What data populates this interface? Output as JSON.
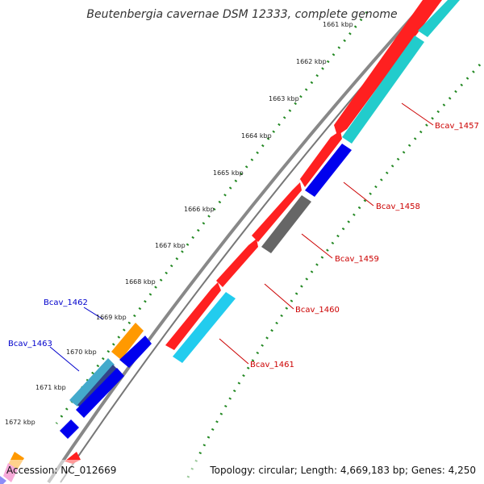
{
  "header": {
    "title": "Beutenbergia cavernae DSM 12333, complete genome"
  },
  "footer": {
    "accession": "Accession: NC_012669",
    "summary": "Topology: circular; Length: 4,669,183 bp; Genes: 4,250"
  },
  "ruler": {
    "ticks": [
      "1661 kbp",
      "1662 kbp",
      "1663 kbp",
      "1664 kbp",
      "1665 kbp",
      "1666 kbp",
      "1667 kbp",
      "1668 kbp",
      "1669 kbp",
      "1670 kbp",
      "1671 kbp",
      "1672 kbp"
    ]
  },
  "genes": {
    "forward_labels": [
      "Bcav_1457",
      "Bcav_1458",
      "Bcav_1459",
      "Bcav_1460",
      "Bcav_1461"
    ],
    "reverse_labels": [
      "Bcav_1462",
      "Bcav_1463"
    ]
  },
  "colors": {
    "cds_red": "#ff0000",
    "cds_cyan": "#22cccc",
    "cds_blue": "#0000ee",
    "cds_gray": "#666666",
    "cds_orange": "#ff9900",
    "backbone": "#888888",
    "tick_green": "#228822",
    "label_forward": "#cc0000",
    "label_reverse": "#0000cc"
  }
}
